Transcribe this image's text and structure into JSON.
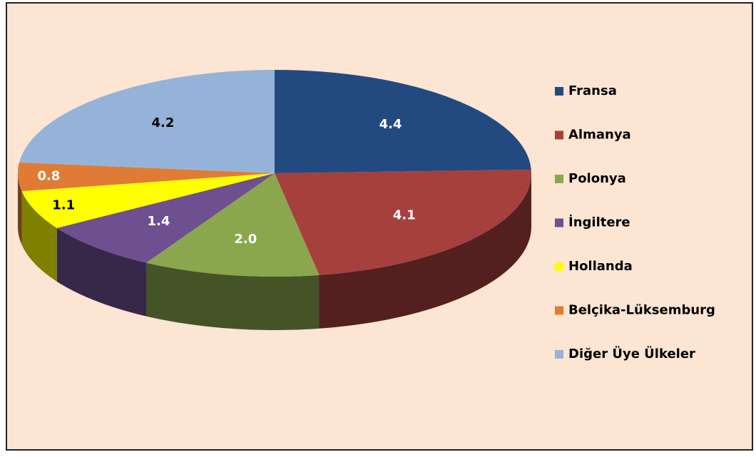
{
  "chart_data": {
    "type": "pie",
    "categories": [
      "Fransa",
      "Almanya",
      "Polonya",
      "İngiltere",
      "Hollanda",
      "Belçika-Lüksemburg",
      "Diğer Üye Ülkeler"
    ],
    "values": [
      4.4,
      4.1,
      2.0,
      1.4,
      1.1,
      0.8,
      4.2
    ],
    "value_labels": [
      "4.4",
      "4.1",
      "2.0",
      "1.4",
      "1.1",
      "0.8",
      "4.2"
    ],
    "colors": [
      "#234a80",
      "#a6403d",
      "#8aa74e",
      "#6e5091",
      "#ffff00",
      "#e07b35",
      "#95b3d8"
    ],
    "legend": "right"
  }
}
